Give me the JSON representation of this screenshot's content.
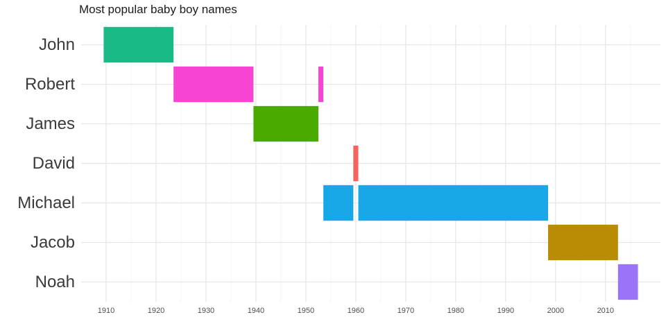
{
  "chart_data": {
    "type": "bar",
    "orientation": "horizontal-timeline",
    "title": "Most popular baby boy names",
    "xlabel": "",
    "ylabel": "",
    "xlim": [
      1905,
      2021
    ],
    "x_ticks": [
      1910,
      1920,
      1930,
      1940,
      1950,
      1960,
      1970,
      1980,
      1990,
      2000,
      2010
    ],
    "categories": [
      "John",
      "Robert",
      "James",
      "David",
      "Michael",
      "Jacob",
      "Noah"
    ],
    "grid": true,
    "legend": "none",
    "series": [
      {
        "name": "John",
        "color": "#1ABA87",
        "segments": [
          [
            1909.5,
            1923.5
          ]
        ]
      },
      {
        "name": "Robert",
        "color": "#F844D3",
        "segments": [
          [
            1923.5,
            1939.5
          ],
          [
            1952.5,
            1953.5
          ]
        ]
      },
      {
        "name": "James",
        "color": "#4AAA00",
        "segments": [
          [
            1939.5,
            1952.5
          ]
        ]
      },
      {
        "name": "David",
        "color": "#F5645F",
        "segments": [
          [
            1959.5,
            1960.5
          ]
        ]
      },
      {
        "name": "Michael",
        "color": "#18A8E8",
        "segments": [
          [
            1953.5,
            1959.5
          ],
          [
            1960.5,
            1998.5
          ]
        ]
      },
      {
        "name": "Jacob",
        "color": "#BA8C06",
        "segments": [
          [
            1998.5,
            2012.5
          ]
        ]
      },
      {
        "name": "Noah",
        "color": "#9B73F9",
        "segments": [
          [
            2012.5,
            2016.5
          ]
        ]
      }
    ]
  }
}
